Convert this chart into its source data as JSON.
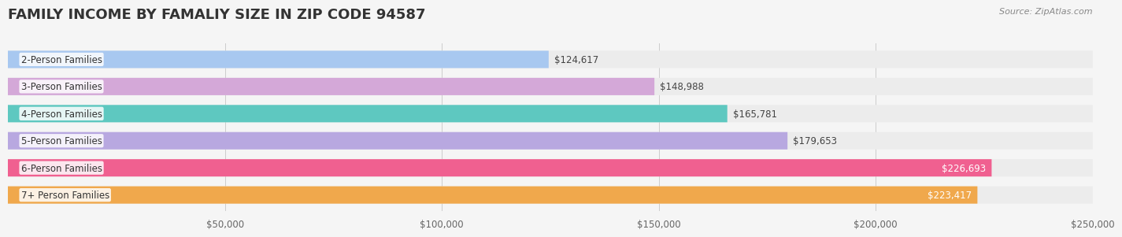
{
  "title": "FAMILY INCOME BY FAMALIY SIZE IN ZIP CODE 94587",
  "source": "Source: ZipAtlas.com",
  "categories": [
    "2-Person Families",
    "3-Person Families",
    "4-Person Families",
    "5-Person Families",
    "6-Person Families",
    "7+ Person Families"
  ],
  "values": [
    124617,
    148988,
    165781,
    179653,
    226693,
    223417
  ],
  "bar_colors": [
    "#a8c8f0",
    "#d4a8d8",
    "#5ec8c0",
    "#b8a8e0",
    "#f06090",
    "#f0a84c"
  ],
  "label_colors": [
    "#555555",
    "#555555",
    "#555555",
    "#ffffff",
    "#ffffff",
    "#ffffff"
  ],
  "xlim": [
    0,
    250000
  ],
  "xticks": [
    0,
    50000,
    100000,
    150000,
    200000,
    250000
  ],
  "xtick_labels": [
    "",
    "$50,000",
    "$100,000",
    "$150,000",
    "$200,000",
    "$250,000"
  ],
  "bg_color": "#f5f5f5",
  "bar_bg_color": "#ececec",
  "bar_height": 0.62,
  "value_labels": [
    "$124,617",
    "$148,988",
    "$165,781",
    "$179,653",
    "$226,693",
    "$223,417"
  ],
  "title_fontsize": 13,
  "label_fontsize": 8.5,
  "value_fontsize": 8.5,
  "tick_fontsize": 8.5
}
